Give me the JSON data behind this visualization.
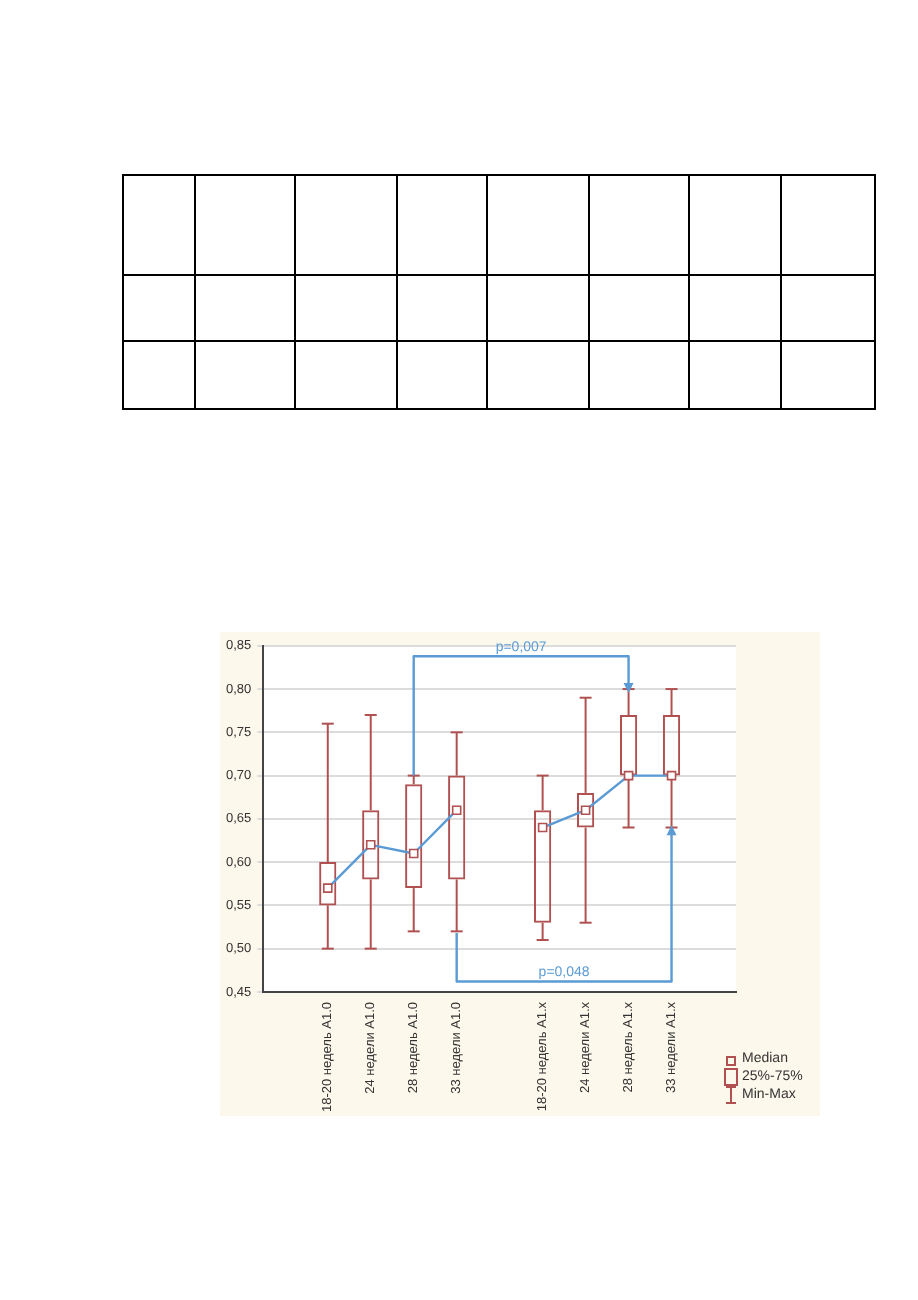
{
  "chart_data": {
    "type": "box",
    "categories": [
      null,
      "18-20 недель A1.0",
      "24 недели A1.0",
      "28 недель A1.0",
      "33 недели A1.0",
      null,
      "18-20 недель A1.x",
      "24 недели A1.x",
      "28 недель A1.x",
      "33 недели A1.x",
      null
    ],
    "series": [
      {
        "color": "#b05050",
        "boxes": [
          null,
          {
            "low": 0.5,
            "q1": 0.55,
            "median": 0.57,
            "q3": 0.6,
            "high": 0.76
          },
          {
            "low": 0.5,
            "q1": 0.58,
            "median": 0.62,
            "q3": 0.66,
            "high": 0.77
          },
          {
            "low": 0.52,
            "q1": 0.57,
            "median": 0.61,
            "q3": 0.69,
            "high": 0.7
          },
          {
            "low": 0.52,
            "q1": 0.58,
            "median": 0.66,
            "q3": 0.7,
            "high": 0.75
          },
          null,
          {
            "low": 0.51,
            "q1": 0.53,
            "median": 0.64,
            "q3": 0.66,
            "high": 0.7
          },
          {
            "low": 0.53,
            "q1": 0.64,
            "median": 0.66,
            "q3": 0.68,
            "high": 0.79
          },
          {
            "low": 0.64,
            "q1": 0.7,
            "median": 0.7,
            "q3": 0.77,
            "high": 0.8
          },
          {
            "low": 0.64,
            "q1": 0.7,
            "median": 0.7,
            "q3": 0.77,
            "high": 0.8
          },
          null
        ]
      },
      {
        "type": "line",
        "color": "#5b9bd5",
        "values": [
          null,
          0.57,
          0.62,
          0.61,
          0.66,
          null,
          0.64,
          0.66,
          0.7,
          0.7,
          null
        ]
      }
    ],
    "ylim": [
      0.45,
      0.85
    ],
    "yticks": [
      {
        "value": 0.45,
        "label": "0,45"
      },
      {
        "value": 0.5,
        "label": "0,50"
      },
      {
        "value": 0.55,
        "label": "0,55"
      },
      {
        "value": 0.6,
        "label": "0,60"
      },
      {
        "value": 0.65,
        "label": "0,65"
      },
      {
        "value": 0.7,
        "label": "0,70"
      },
      {
        "value": 0.75,
        "label": "0,75"
      },
      {
        "value": 0.8,
        "label": "0,80"
      },
      {
        "value": 0.85,
        "label": "0,85"
      }
    ],
    "grid": "y",
    "annotations": [
      "p=0,007",
      "p=0,048",
      "Median",
      "25%-75%",
      "Min-Max"
    ]
  }
}
